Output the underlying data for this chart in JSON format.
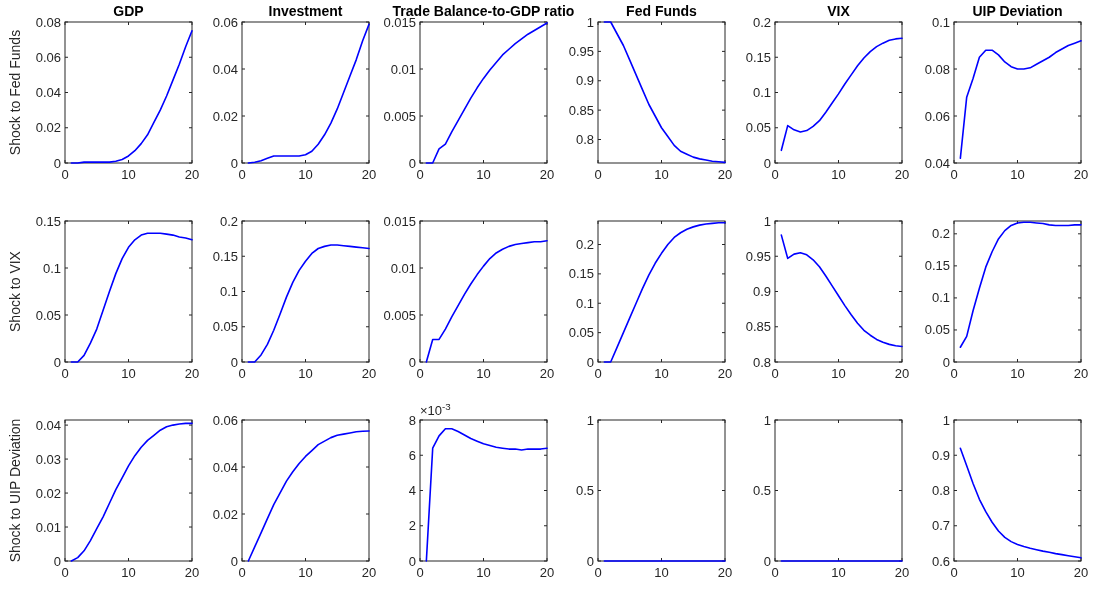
{
  "chart_data": [
    {
      "type": "line",
      "title": "GDP",
      "ylabel": "Shock to Fed Funds",
      "x": [
        1,
        2,
        3,
        4,
        5,
        6,
        7,
        8,
        9,
        10,
        11,
        12,
        13,
        14,
        15,
        16,
        17,
        18,
        19,
        20
      ],
      "xlim": [
        0,
        20
      ],
      "xticks": [
        0,
        10,
        20
      ],
      "ylim": [
        0,
        0.08
      ],
      "yticks": [
        0,
        0.02,
        0.04,
        0.06,
        0.08
      ],
      "series": [
        {
          "color": "#0000ff",
          "values": [
            0,
            0,
            0.0005,
            0.0005,
            0.0005,
            0.0005,
            0.0005,
            0.001,
            0.002,
            0.004,
            0.007,
            0.011,
            0.016,
            0.023,
            0.03,
            0.038,
            0.047,
            0.056,
            0.066,
            0.075
          ]
        }
      ]
    },
    {
      "type": "line",
      "title": "Investment",
      "x": [
        1,
        2,
        3,
        4,
        5,
        6,
        7,
        8,
        9,
        10,
        11,
        12,
        13,
        14,
        15,
        16,
        17,
        18,
        19,
        20
      ],
      "xlim": [
        0,
        20
      ],
      "xticks": [
        0,
        10,
        20
      ],
      "ylim": [
        0,
        0.06
      ],
      "yticks": [
        0,
        0.02,
        0.04,
        0.06
      ],
      "series": [
        {
          "color": "#0000ff",
          "values": [
            0,
            0.0003,
            0.001,
            0.002,
            0.003,
            0.003,
            0.003,
            0.003,
            0.003,
            0.0035,
            0.005,
            0.008,
            0.012,
            0.017,
            0.023,
            0.03,
            0.037,
            0.044,
            0.052,
            0.059
          ]
        }
      ]
    },
    {
      "type": "line",
      "title": "Trade Balance-to-GDP ratio",
      "x": [
        1,
        2,
        3,
        4,
        5,
        6,
        7,
        8,
        9,
        10,
        11,
        12,
        13,
        14,
        15,
        16,
        17,
        18,
        19,
        20
      ],
      "xlim": [
        0,
        20
      ],
      "xticks": [
        0,
        10,
        20
      ],
      "ylim": [
        0,
        0.015
      ],
      "yticks": [
        0,
        0.005,
        0.01,
        0.015
      ],
      "series": [
        {
          "color": "#0000ff",
          "values": [
            0,
            0,
            0.0015,
            0.002,
            0.0033,
            0.0045,
            0.0057,
            0.0069,
            0.008,
            0.009,
            0.0099,
            0.0107,
            0.0115,
            0.0121,
            0.0127,
            0.0132,
            0.0137,
            0.0141,
            0.0145,
            0.0149
          ]
        }
      ]
    },
    {
      "type": "line",
      "title": "Fed Funds",
      "x": [
        1,
        2,
        3,
        4,
        5,
        6,
        7,
        8,
        9,
        10,
        11,
        12,
        13,
        14,
        15,
        16,
        17,
        18,
        19,
        20
      ],
      "xlim": [
        0,
        20
      ],
      "xticks": [
        0,
        10,
        20
      ],
      "ylim": [
        0.76,
        1
      ],
      "yticks": [
        0.8,
        0.85,
        0.9,
        0.95,
        1
      ],
      "series": [
        {
          "color": "#0000ff",
          "values": [
            1,
            1,
            0.98,
            0.96,
            0.935,
            0.91,
            0.885,
            0.86,
            0.84,
            0.82,
            0.805,
            0.79,
            0.78,
            0.775,
            0.77,
            0.767,
            0.765,
            0.763,
            0.762,
            0.761
          ]
        }
      ]
    },
    {
      "type": "line",
      "title": "VIX",
      "x": [
        1,
        2,
        3,
        4,
        5,
        6,
        7,
        8,
        9,
        10,
        11,
        12,
        13,
        14,
        15,
        16,
        17,
        18,
        19,
        20
      ],
      "xlim": [
        0,
        20
      ],
      "xticks": [
        0,
        10,
        20
      ],
      "ylim": [
        0,
        0.2
      ],
      "yticks": [
        0,
        0.05,
        0.1,
        0.15,
        0.2
      ],
      "series": [
        {
          "color": "#0000ff",
          "values": [
            0.018,
            0.053,
            0.047,
            0.044,
            0.046,
            0.052,
            0.06,
            0.072,
            0.085,
            0.098,
            0.112,
            0.125,
            0.138,
            0.149,
            0.158,
            0.165,
            0.17,
            0.174,
            0.176,
            0.177
          ]
        }
      ]
    },
    {
      "type": "line",
      "title": "UIP Deviation",
      "x": [
        1,
        2,
        3,
        4,
        5,
        6,
        7,
        8,
        9,
        10,
        11,
        12,
        13,
        14,
        15,
        16,
        17,
        18,
        19,
        20
      ],
      "xlim": [
        0,
        20
      ],
      "xticks": [
        0,
        10,
        20
      ],
      "ylim": [
        0.04,
        0.1
      ],
      "yticks": [
        0.04,
        0.06,
        0.08,
        0.1
      ],
      "series": [
        {
          "color": "#0000ff",
          "values": [
            0.042,
            0.068,
            0.076,
            0.085,
            0.088,
            0.088,
            0.086,
            0.083,
            0.081,
            0.08,
            0.08,
            0.0805,
            0.082,
            0.0835,
            0.085,
            0.087,
            0.0885,
            0.09,
            0.091,
            0.092
          ]
        }
      ]
    },
    {
      "type": "line",
      "ylabel": "Shock to VIX",
      "x": [
        1,
        2,
        3,
        4,
        5,
        6,
        7,
        8,
        9,
        10,
        11,
        12,
        13,
        14,
        15,
        16,
        17,
        18,
        19,
        20
      ],
      "xlim": [
        0,
        20
      ],
      "xticks": [
        0,
        10,
        20
      ],
      "ylim": [
        0,
        0.15
      ],
      "yticks": [
        0,
        0.05,
        0.1,
        0.15
      ],
      "series": [
        {
          "color": "#0000ff",
          "values": [
            0,
            0,
            0.007,
            0.02,
            0.035,
            0.055,
            0.075,
            0.094,
            0.11,
            0.122,
            0.13,
            0.135,
            0.137,
            0.137,
            0.137,
            0.136,
            0.135,
            0.133,
            0.132,
            0.13
          ]
        }
      ]
    },
    {
      "type": "line",
      "x": [
        1,
        2,
        3,
        4,
        5,
        6,
        7,
        8,
        9,
        10,
        11,
        12,
        13,
        14,
        15,
        16,
        17,
        18,
        19,
        20
      ],
      "xlim": [
        0,
        20
      ],
      "xticks": [
        0,
        10,
        20
      ],
      "ylim": [
        0,
        0.2
      ],
      "yticks": [
        0,
        0.05,
        0.1,
        0.15,
        0.2
      ],
      "series": [
        {
          "color": "#0000ff",
          "values": [
            0,
            0,
            0.01,
            0.025,
            0.045,
            0.068,
            0.092,
            0.113,
            0.13,
            0.143,
            0.154,
            0.161,
            0.164,
            0.166,
            0.166,
            0.165,
            0.164,
            0.163,
            0.162,
            0.161
          ]
        }
      ]
    },
    {
      "type": "line",
      "x": [
        1,
        2,
        3,
        4,
        5,
        6,
        7,
        8,
        9,
        10,
        11,
        12,
        13,
        14,
        15,
        16,
        17,
        18,
        19,
        20
      ],
      "xlim": [
        0,
        20
      ],
      "xticks": [
        0,
        10,
        20
      ],
      "ylim": [
        0,
        0.015
      ],
      "yticks": [
        0,
        0.005,
        0.01,
        0.015
      ],
      "series": [
        {
          "color": "#0000ff",
          "values": [
            0,
            0.0024,
            0.0024,
            0.0035,
            0.0048,
            0.006,
            0.0072,
            0.0083,
            0.0093,
            0.0102,
            0.011,
            0.0116,
            0.012,
            0.0123,
            0.0125,
            0.0126,
            0.0127,
            0.0128,
            0.0128,
            0.0129
          ]
        }
      ]
    },
    {
      "type": "line",
      "x": [
        1,
        2,
        3,
        4,
        5,
        6,
        7,
        8,
        9,
        10,
        11,
        12,
        13,
        14,
        15,
        16,
        17,
        18,
        19,
        20
      ],
      "xlim": [
        0,
        20
      ],
      "xticks": [
        0,
        10,
        20
      ],
      "ylim": [
        0,
        0.24
      ],
      "yticks": [
        0,
        0.05,
        0.1,
        0.15,
        0.2
      ],
      "series": [
        {
          "color": "#0000ff",
          "values": [
            0,
            0,
            0.025,
            0.05,
            0.075,
            0.1,
            0.125,
            0.148,
            0.168,
            0.185,
            0.2,
            0.212,
            0.22,
            0.226,
            0.23,
            0.233,
            0.235,
            0.236,
            0.237,
            0.237
          ]
        }
      ]
    },
    {
      "type": "line",
      "x": [
        1,
        2,
        3,
        4,
        5,
        6,
        7,
        8,
        9,
        10,
        11,
        12,
        13,
        14,
        15,
        16,
        17,
        18,
        19,
        20
      ],
      "xlim": [
        0,
        20
      ],
      "xticks": [
        0,
        10,
        20
      ],
      "ylim": [
        0.8,
        1
      ],
      "yticks": [
        0.8,
        0.85,
        0.9,
        0.95,
        1
      ],
      "series": [
        {
          "color": "#0000ff",
          "values": [
            0.98,
            0.947,
            0.953,
            0.955,
            0.952,
            0.945,
            0.935,
            0.922,
            0.908,
            0.894,
            0.88,
            0.867,
            0.855,
            0.845,
            0.838,
            0.832,
            0.828,
            0.825,
            0.823,
            0.822
          ]
        }
      ]
    },
    {
      "type": "line",
      "x": [
        1,
        2,
        3,
        4,
        5,
        6,
        7,
        8,
        9,
        10,
        11,
        12,
        13,
        14,
        15,
        16,
        17,
        18,
        19,
        20
      ],
      "xlim": [
        0,
        20
      ],
      "xticks": [
        0,
        10,
        20
      ],
      "ylim": [
        0,
        0.22
      ],
      "yticks": [
        0,
        0.05,
        0.1,
        0.15,
        0.2
      ],
      "series": [
        {
          "color": "#0000ff",
          "values": [
            0.023,
            0.04,
            0.08,
            0.115,
            0.148,
            0.172,
            0.192,
            0.205,
            0.213,
            0.217,
            0.218,
            0.218,
            0.217,
            0.216,
            0.214,
            0.213,
            0.213,
            0.213,
            0.214,
            0.214
          ]
        }
      ]
    },
    {
      "type": "line",
      "ylabel": "Shock to UIP Deviation",
      "x": [
        1,
        2,
        3,
        4,
        5,
        6,
        7,
        8,
        9,
        10,
        11,
        12,
        13,
        14,
        15,
        16,
        17,
        18,
        19,
        20
      ],
      "xlim": [
        0,
        20
      ],
      "xticks": [
        0,
        10,
        20
      ],
      "ylim": [
        0,
        0.0415
      ],
      "yticks": [
        0,
        0.01,
        0.02,
        0.03,
        0.04
      ],
      "series": [
        {
          "color": "#0000ff",
          "values": [
            0,
            0.001,
            0.003,
            0.006,
            0.0095,
            0.013,
            0.017,
            0.021,
            0.0245,
            0.028,
            0.031,
            0.0335,
            0.0355,
            0.037,
            0.0385,
            0.0395,
            0.04,
            0.0403,
            0.0405,
            0.0405
          ]
        }
      ]
    },
    {
      "type": "line",
      "x": [
        1,
        2,
        3,
        4,
        5,
        6,
        7,
        8,
        9,
        10,
        11,
        12,
        13,
        14,
        15,
        16,
        17,
        18,
        19,
        20
      ],
      "xlim": [
        0,
        20
      ],
      "xticks": [
        0,
        10,
        20
      ],
      "ylim": [
        0,
        0.06
      ],
      "yticks": [
        0,
        0.02,
        0.04,
        0.06
      ],
      "series": [
        {
          "color": "#0000ff",
          "values": [
            0,
            0.006,
            0.012,
            0.018,
            0.024,
            0.029,
            0.034,
            0.038,
            0.0415,
            0.0445,
            0.047,
            0.0495,
            0.051,
            0.0525,
            0.0535,
            0.054,
            0.0545,
            0.055,
            0.0552,
            0.0553
          ]
        }
      ]
    },
    {
      "type": "line",
      "annotations": [
        "×10$^{-3}$"
      ],
      "x": [
        1,
        2,
        3,
        4,
        5,
        6,
        7,
        8,
        9,
        10,
        11,
        12,
        13,
        14,
        15,
        16,
        17,
        18,
        19,
        20
      ],
      "xlim": [
        0,
        20
      ],
      "xticks": [
        0,
        10,
        20
      ],
      "ylim": [
        0,
        8
      ],
      "yticks": [
        0,
        2,
        4,
        6,
        8
      ],
      "series": [
        {
          "color": "#0000ff",
          "values": [
            0,
            6.4,
            7.1,
            7.5,
            7.5,
            7.35,
            7.15,
            6.95,
            6.8,
            6.65,
            6.55,
            6.45,
            6.4,
            6.35,
            6.35,
            6.3,
            6.35,
            6.35,
            6.35,
            6.4
          ]
        }
      ]
    },
    {
      "type": "line",
      "x": [
        1,
        2,
        3,
        4,
        5,
        6,
        7,
        8,
        9,
        10,
        11,
        12,
        13,
        14,
        15,
        16,
        17,
        18,
        19,
        20
      ],
      "xlim": [
        0,
        20
      ],
      "xticks": [
        0,
        10,
        20
      ],
      "ylim": [
        0,
        1
      ],
      "yticks": [
        0,
        0.5,
        1
      ],
      "series": [
        {
          "color": "#0000ff",
          "values": [
            0,
            0,
            0,
            0,
            0,
            0,
            0,
            0,
            0,
            0,
            0,
            0,
            0,
            0,
            0,
            0,
            0,
            0,
            0,
            0
          ]
        }
      ]
    },
    {
      "type": "line",
      "x": [
        1,
        2,
        3,
        4,
        5,
        6,
        7,
        8,
        9,
        10,
        11,
        12,
        13,
        14,
        15,
        16,
        17,
        18,
        19,
        20
      ],
      "xlim": [
        0,
        20
      ],
      "xticks": [
        0,
        10,
        20
      ],
      "ylim": [
        0,
        1
      ],
      "yticks": [
        0,
        0.5,
        1
      ],
      "series": [
        {
          "color": "#0000ff",
          "values": [
            0,
            0,
            0,
            0,
            0,
            0,
            0,
            0,
            0,
            0,
            0,
            0,
            0,
            0,
            0,
            0,
            0,
            0,
            0,
            0
          ]
        }
      ]
    },
    {
      "type": "line",
      "x": [
        1,
        2,
        3,
        4,
        5,
        6,
        7,
        8,
        9,
        10,
        11,
        12,
        13,
        14,
        15,
        16,
        17,
        18,
        19,
        20
      ],
      "xlim": [
        0,
        20
      ],
      "xticks": [
        0,
        10,
        20
      ],
      "ylim": [
        0.6,
        1
      ],
      "yticks": [
        0.6,
        0.7,
        0.8,
        0.9,
        1
      ],
      "series": [
        {
          "color": "#0000ff",
          "values": [
            0.92,
            0.87,
            0.82,
            0.775,
            0.74,
            0.71,
            0.685,
            0.667,
            0.655,
            0.647,
            0.641,
            0.636,
            0.632,
            0.628,
            0.625,
            0.621,
            0.618,
            0.615,
            0.612,
            0.609
          ]
        }
      ]
    }
  ]
}
